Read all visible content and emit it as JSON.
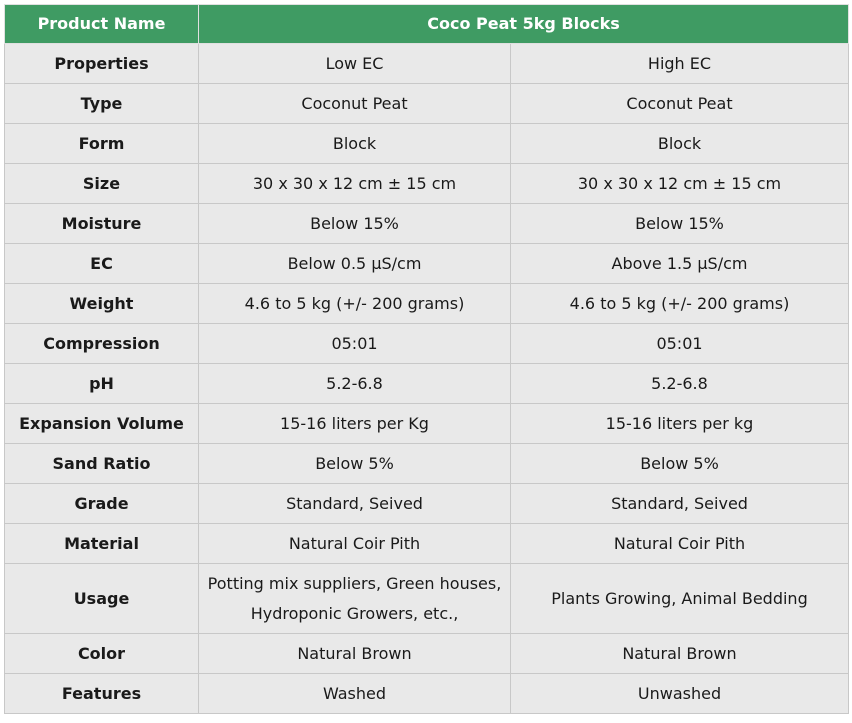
{
  "header": {
    "label": "Product Name",
    "product": "Coco Peat 5kg Blocks"
  },
  "colors": {
    "header_bg": "#3f9b63",
    "cell_bg": "#e9e9e9"
  },
  "rows": [
    {
      "label": "Properties",
      "a": "Low EC",
      "b": "High EC"
    },
    {
      "label": "Type",
      "a": "Coconut Peat",
      "b": "Coconut Peat"
    },
    {
      "label": "Form",
      "a": "Block",
      "b": "Block"
    },
    {
      "label": "Size",
      "a": "30 x 30 x 12 cm ± 15 cm",
      "b": "30 x 30 x 12 cm ± 15 cm"
    },
    {
      "label": "Moisture",
      "a": "Below 15%",
      "b": "Below 15%"
    },
    {
      "label": "EC",
      "a": "Below 0.5 µS/cm",
      "b": "Above 1.5 µS/cm"
    },
    {
      "label": "Weight",
      "a": "4.6 to 5 kg (+/- 200 grams)",
      "b": "4.6 to 5 kg (+/- 200 grams)"
    },
    {
      "label": "Compression",
      "a": "05:01",
      "b": "05:01"
    },
    {
      "label": "pH",
      "a": "5.2-6.8",
      "b": "5.2-6.8"
    },
    {
      "label": "Expansion Volume",
      "a": "15-16 liters per Kg",
      "b": "15-16 liters per kg"
    },
    {
      "label": "Sand Ratio",
      "a": "Below 5%",
      "b": "Below 5%"
    },
    {
      "label": "Grade",
      "a": "Standard, Seived",
      "b": "Standard, Seived"
    },
    {
      "label": "Material",
      "a": "Natural Coir Pith",
      "b": "Natural Coir Pith"
    },
    {
      "label": "Usage",
      "a": "Potting mix suppliers, Green houses, Hydroponic Growers, etc.,",
      "b": "Plants Growing, Animal Bedding"
    },
    {
      "label": "Color",
      "a": "Natural Brown",
      "b": "Natural Brown"
    },
    {
      "label": "Features",
      "a": "Washed",
      "b": "Unwashed"
    }
  ]
}
